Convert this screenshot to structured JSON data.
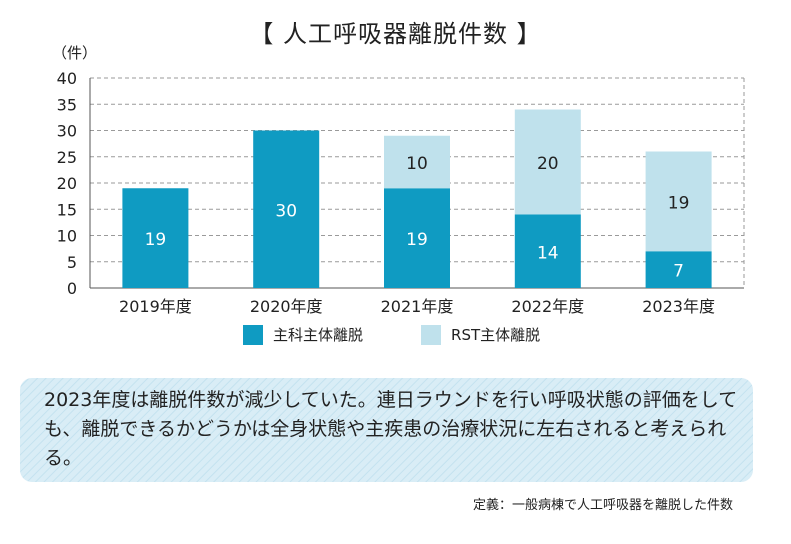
{
  "title": "【 人工呼吸器離脱件数 】",
  "y_unit": "（件）",
  "chart_data": {
    "type": "bar",
    "stacked": true,
    "categories": [
      "2019年度",
      "2020年度",
      "2021年度",
      "2022年度",
      "2023年度"
    ],
    "series": [
      {
        "name": "主科主体離脱",
        "values": [
          19,
          30,
          19,
          14,
          7
        ],
        "color": "#0f9bc2"
      },
      {
        "name": "RST主体離脱",
        "values": [
          0,
          0,
          10,
          20,
          19
        ],
        "color": "#bfe1ec"
      }
    ],
    "ylim": [
      0,
      40
    ],
    "yticks": [
      0,
      5,
      10,
      15,
      20,
      25,
      30,
      35,
      40
    ],
    "grid": true,
    "legend_position": "bottom"
  },
  "note": {
    "text": "2023年度は離脱件数が減少していた。連日ラウンドを行い呼吸状態の評価をしても、離脱できるかどうかは全身状態や主疾患の治療状況に左右されると考えられる。"
  },
  "definition": "定義：一般病棟で人工呼吸器を離脱した件数",
  "colors": {
    "note_background": "#d7ecf5",
    "note_stripe": "#c2e0ee"
  }
}
